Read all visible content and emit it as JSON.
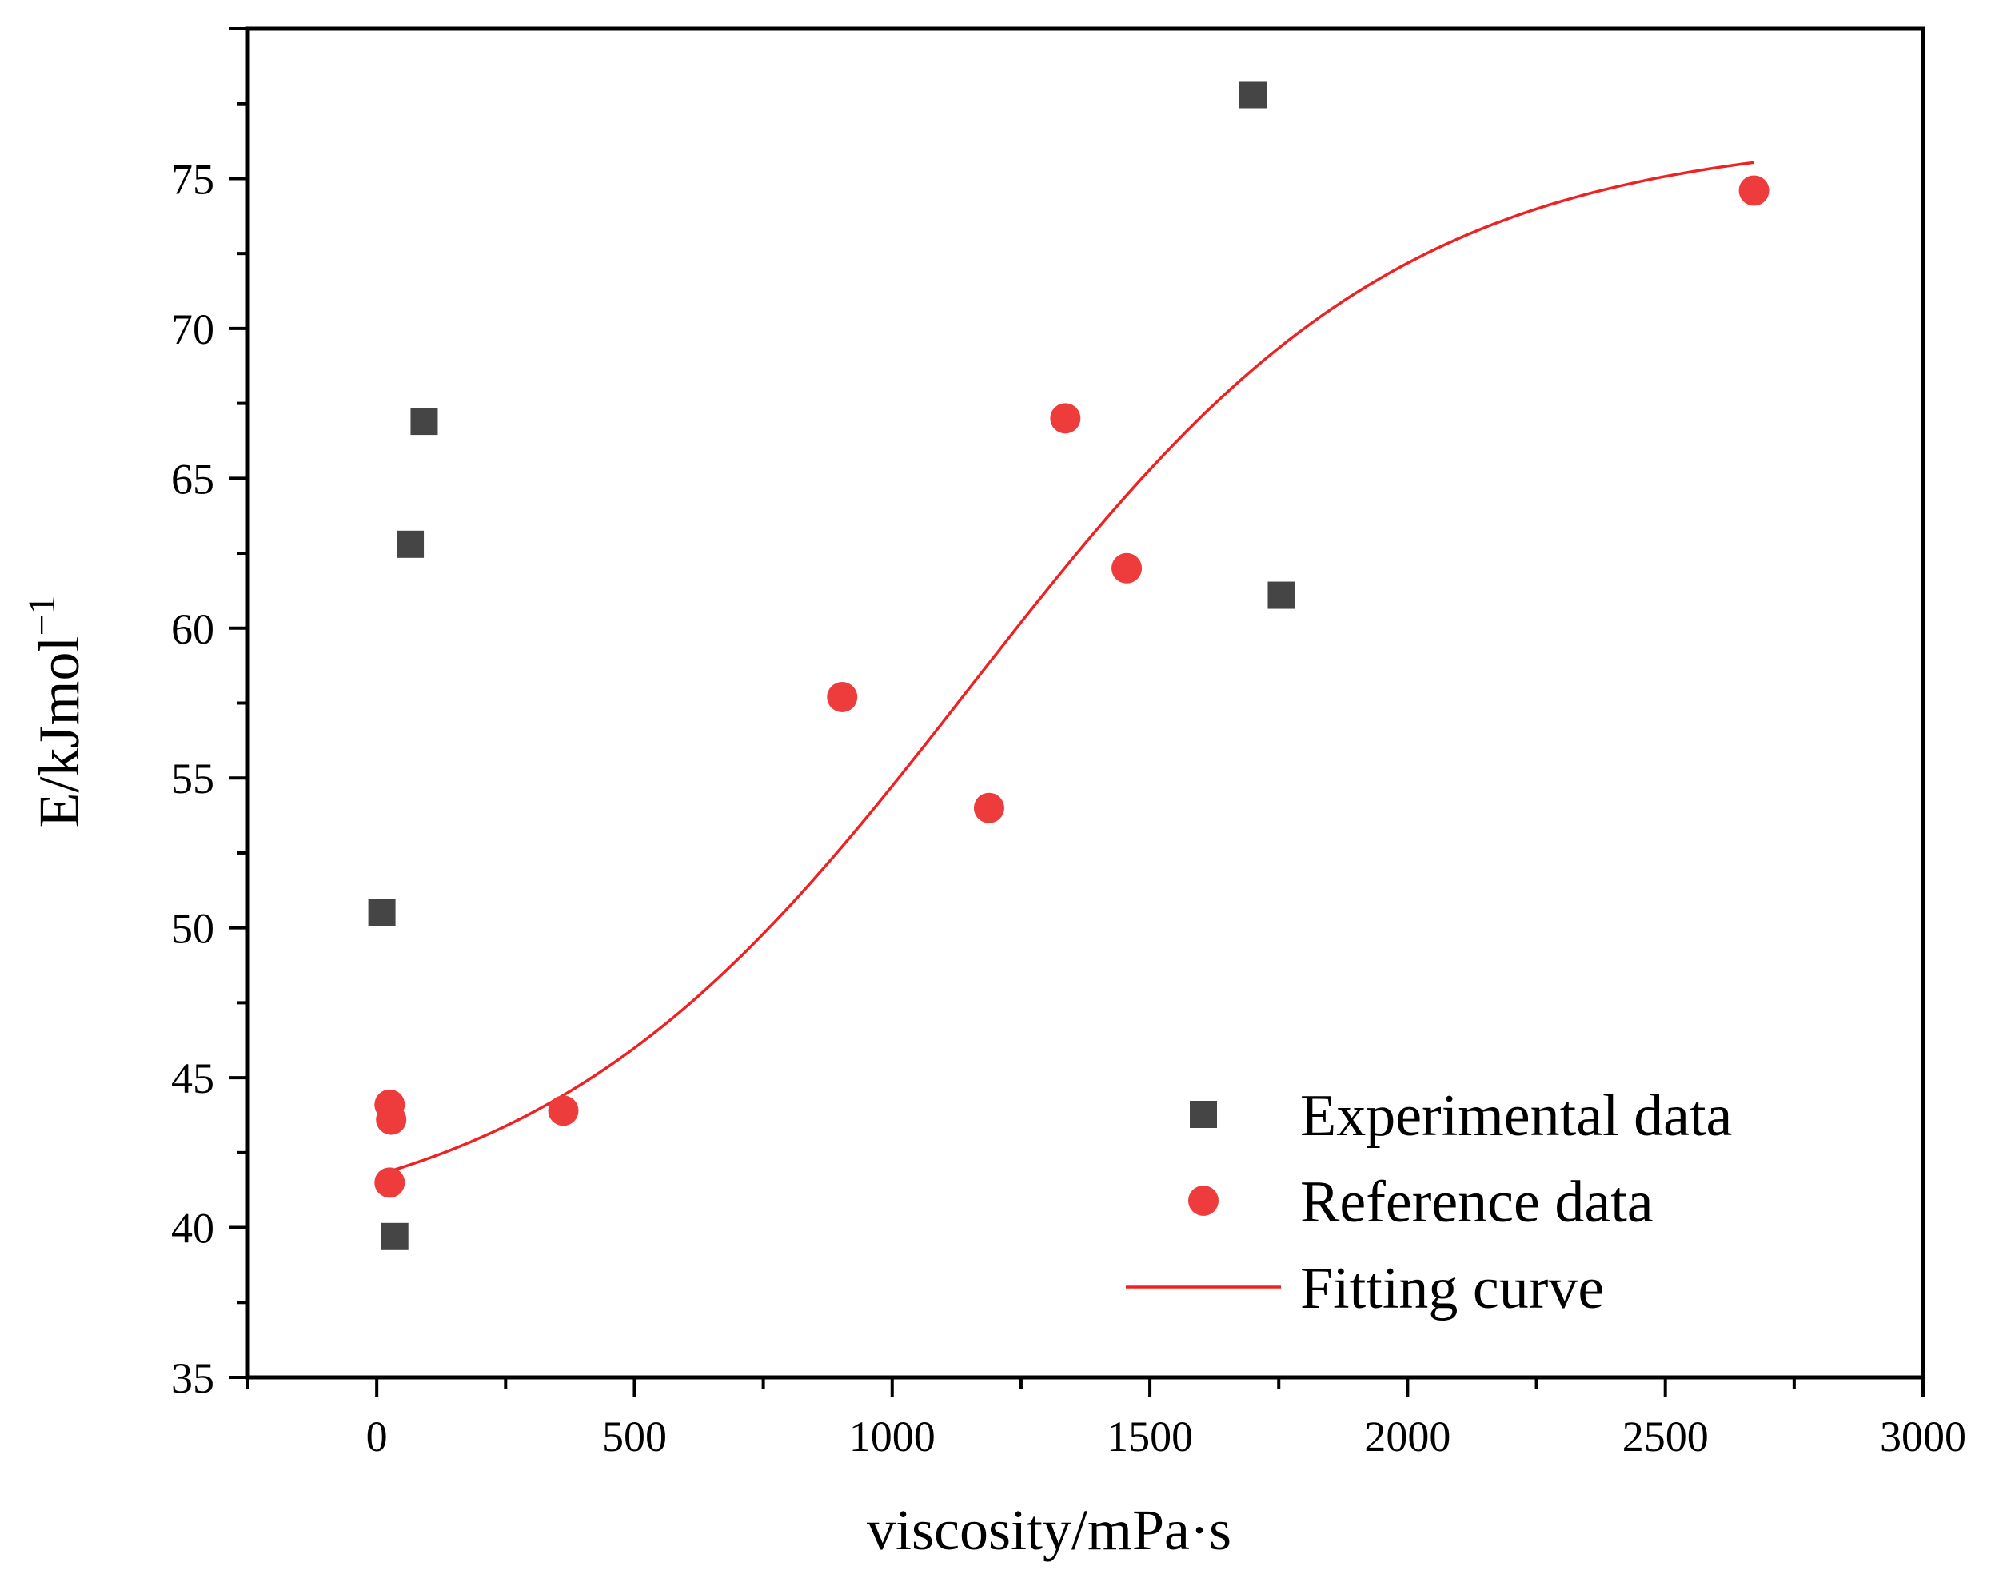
{
  "chart_data": {
    "type": "scatter",
    "title": "",
    "xlabel": "viscosity/mPa·s",
    "ylabel": "E/kJmol",
    "ylabel_superscript": "−1",
    "xlim": [
      -250,
      3000
    ],
    "ylim": [
      35,
      80
    ],
    "x_ticks": [
      0,
      500,
      1000,
      1500,
      2000,
      2500,
      3000
    ],
    "x_tick_labels": [
      "0",
      "500",
      "1000",
      "1500",
      "2000",
      "2500",
      "3000"
    ],
    "y_ticks": [
      35,
      40,
      45,
      50,
      55,
      60,
      65,
      70,
      75
    ],
    "y_tick_labels": [
      "35",
      "40",
      "45",
      "50",
      "55",
      "60",
      "65",
      "70",
      "75"
    ],
    "grid": false,
    "legend_position": "bottom-right",
    "series": [
      {
        "name": "Experimental data",
        "marker": "square",
        "color": "#454545",
        "x": [
          10,
          92,
          65,
          35,
          1700,
          1755
        ],
        "y": [
          50.5,
          66.9,
          62.8,
          39.7,
          77.8,
          61.1
        ]
      },
      {
        "name": "Reference data",
        "marker": "circle",
        "color": "#ee3b3b",
        "x": [
          25,
          28,
          25,
          362,
          903,
          1188,
          1336,
          1455,
          2672
        ],
        "y": [
          44.1,
          43.6,
          41.5,
          43.9,
          57.7,
          54.0,
          67.0,
          62.0,
          74.6
        ]
      },
      {
        "name": "Fitting curve",
        "type": "line",
        "color": "#ee2222",
        "model": "boltzmann",
        "params": {
          "A1": 39.5,
          "A2": 76.5,
          "x0": 1150,
          "dx": 420
        },
        "x_range": [
          25,
          2672
        ]
      }
    ]
  }
}
